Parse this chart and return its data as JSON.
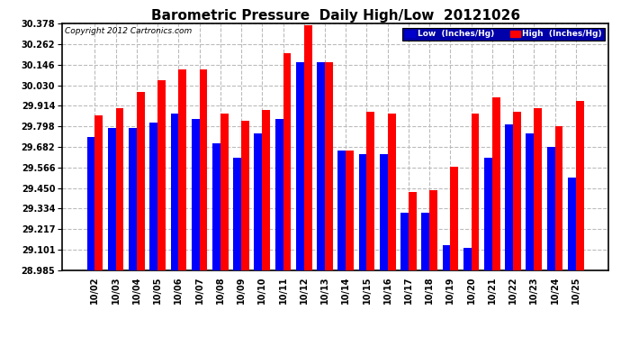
{
  "title": "Barometric Pressure  Daily High/Low  20121026",
  "copyright": "Copyright 2012 Cartronics.com",
  "ylabel_low": "Low  (Inches/Hg)",
  "ylabel_high": "High  (Inches/Hg)",
  "categories": [
    "10/02",
    "10/03",
    "10/04",
    "10/05",
    "10/06",
    "10/07",
    "10/08",
    "10/09",
    "10/10",
    "10/11",
    "10/12",
    "10/13",
    "10/14",
    "10/15",
    "10/16",
    "10/17",
    "10/18",
    "10/19",
    "10/20",
    "10/21",
    "10/22",
    "10/23",
    "10/24",
    "10/25"
  ],
  "high_values": [
    29.862,
    29.9,
    29.99,
    30.06,
    30.12,
    30.12,
    29.87,
    29.83,
    29.89,
    30.21,
    30.37,
    30.16,
    29.66,
    29.88,
    29.87,
    29.43,
    29.44,
    29.57,
    29.87,
    29.96,
    29.88,
    29.9,
    29.8,
    29.94
  ],
  "low_values": [
    29.74,
    29.79,
    29.79,
    29.82,
    29.87,
    29.84,
    29.7,
    29.62,
    29.76,
    29.84,
    30.16,
    30.16,
    29.66,
    29.64,
    29.64,
    29.31,
    29.31,
    29.13,
    29.11,
    29.62,
    29.81,
    29.76,
    29.68,
    29.51
  ],
  "ymin": 28.985,
  "ymax": 30.378,
  "yticks": [
    28.985,
    29.101,
    29.217,
    29.334,
    29.45,
    29.566,
    29.682,
    29.798,
    29.914,
    30.03,
    30.146,
    30.262,
    30.378
  ],
  "background_color": "#ffffff",
  "bar_width": 0.38,
  "low_color": "#0000ff",
  "high_color": "#ff0000",
  "grid_color": "#bbbbbb",
  "title_fontsize": 11,
  "tick_fontsize": 7,
  "legend_low_color": "#0000cc",
  "legend_high_color": "#ff0000",
  "legend_bg_color": "#0000aa"
}
